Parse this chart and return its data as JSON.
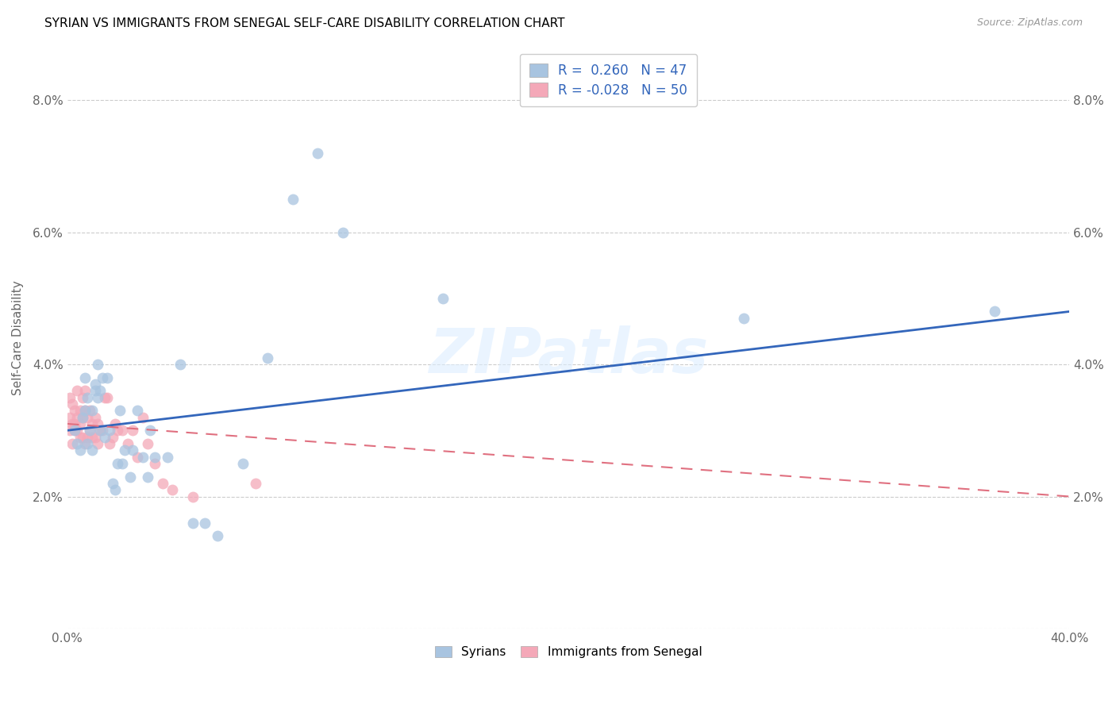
{
  "title": "SYRIAN VS IMMIGRANTS FROM SENEGAL SELF-CARE DISABILITY CORRELATION CHART",
  "source": "Source: ZipAtlas.com",
  "xlabel": "",
  "ylabel": "Self-Care Disability",
  "xlim": [
    0.0,
    0.4
  ],
  "ylim": [
    0.0,
    0.088
  ],
  "yticks": [
    0.0,
    0.02,
    0.04,
    0.06,
    0.08
  ],
  "ytick_labels": [
    "",
    "2.0%",
    "4.0%",
    "6.0%",
    "8.0%"
  ],
  "xticks": [
    0.0,
    0.05,
    0.1,
    0.15,
    0.2,
    0.25,
    0.3,
    0.35,
    0.4
  ],
  "xtick_labels": [
    "0.0%",
    "",
    "",
    "",
    "",
    "",
    "",
    "",
    "40.0%"
  ],
  "syrian_color": "#a8c4e0",
  "senegal_color": "#f4a8b8",
  "syrian_line_color": "#3366bb",
  "senegal_line_color": "#e07080",
  "watermark_text": "ZIPatlas",
  "legend_R_syrian": "0.260",
  "legend_N_syrian": "47",
  "legend_R_senegal": "-0.028",
  "legend_N_senegal": "50",
  "syrian_line_x0": 0.0,
  "syrian_line_y0": 0.03,
  "syrian_line_x1": 0.4,
  "syrian_line_y1": 0.048,
  "senegal_line_x0": 0.0,
  "senegal_line_y0": 0.031,
  "senegal_line_x1": 0.4,
  "senegal_line_y1": 0.02,
  "syrian_scatter_x": [
    0.003,
    0.004,
    0.005,
    0.006,
    0.007,
    0.007,
    0.008,
    0.008,
    0.009,
    0.01,
    0.01,
    0.011,
    0.011,
    0.012,
    0.012,
    0.013,
    0.013,
    0.014,
    0.015,
    0.016,
    0.017,
    0.018,
    0.019,
    0.02,
    0.021,
    0.022,
    0.023,
    0.025,
    0.026,
    0.028,
    0.03,
    0.032,
    0.033,
    0.035,
    0.04,
    0.045,
    0.05,
    0.055,
    0.06,
    0.07,
    0.08,
    0.09,
    0.1,
    0.11,
    0.15,
    0.27,
    0.37
  ],
  "syrian_scatter_y": [
    0.03,
    0.028,
    0.027,
    0.032,
    0.033,
    0.038,
    0.028,
    0.035,
    0.03,
    0.033,
    0.027,
    0.037,
    0.036,
    0.035,
    0.04,
    0.03,
    0.036,
    0.038,
    0.029,
    0.038,
    0.03,
    0.022,
    0.021,
    0.025,
    0.033,
    0.025,
    0.027,
    0.023,
    0.027,
    0.033,
    0.026,
    0.023,
    0.03,
    0.026,
    0.026,
    0.04,
    0.016,
    0.016,
    0.014,
    0.025,
    0.041,
    0.065,
    0.072,
    0.06,
    0.05,
    0.047,
    0.048
  ],
  "senegal_scatter_x": [
    0.001,
    0.001,
    0.001,
    0.002,
    0.002,
    0.002,
    0.003,
    0.003,
    0.003,
    0.004,
    0.004,
    0.004,
    0.005,
    0.005,
    0.005,
    0.006,
    0.006,
    0.006,
    0.007,
    0.007,
    0.007,
    0.008,
    0.008,
    0.009,
    0.009,
    0.01,
    0.01,
    0.011,
    0.011,
    0.012,
    0.012,
    0.013,
    0.014,
    0.015,
    0.016,
    0.017,
    0.018,
    0.019,
    0.02,
    0.022,
    0.024,
    0.026,
    0.028,
    0.03,
    0.032,
    0.035,
    0.038,
    0.042,
    0.05,
    0.075
  ],
  "senegal_scatter_y": [
    0.03,
    0.032,
    0.035,
    0.028,
    0.031,
    0.034,
    0.03,
    0.031,
    0.033,
    0.03,
    0.032,
    0.036,
    0.029,
    0.031,
    0.033,
    0.029,
    0.032,
    0.035,
    0.028,
    0.033,
    0.036,
    0.029,
    0.032,
    0.03,
    0.033,
    0.029,
    0.031,
    0.029,
    0.032,
    0.028,
    0.031,
    0.03,
    0.03,
    0.035,
    0.035,
    0.028,
    0.029,
    0.031,
    0.03,
    0.03,
    0.028,
    0.03,
    0.026,
    0.032,
    0.028,
    0.025,
    0.022,
    0.021,
    0.02,
    0.022
  ]
}
